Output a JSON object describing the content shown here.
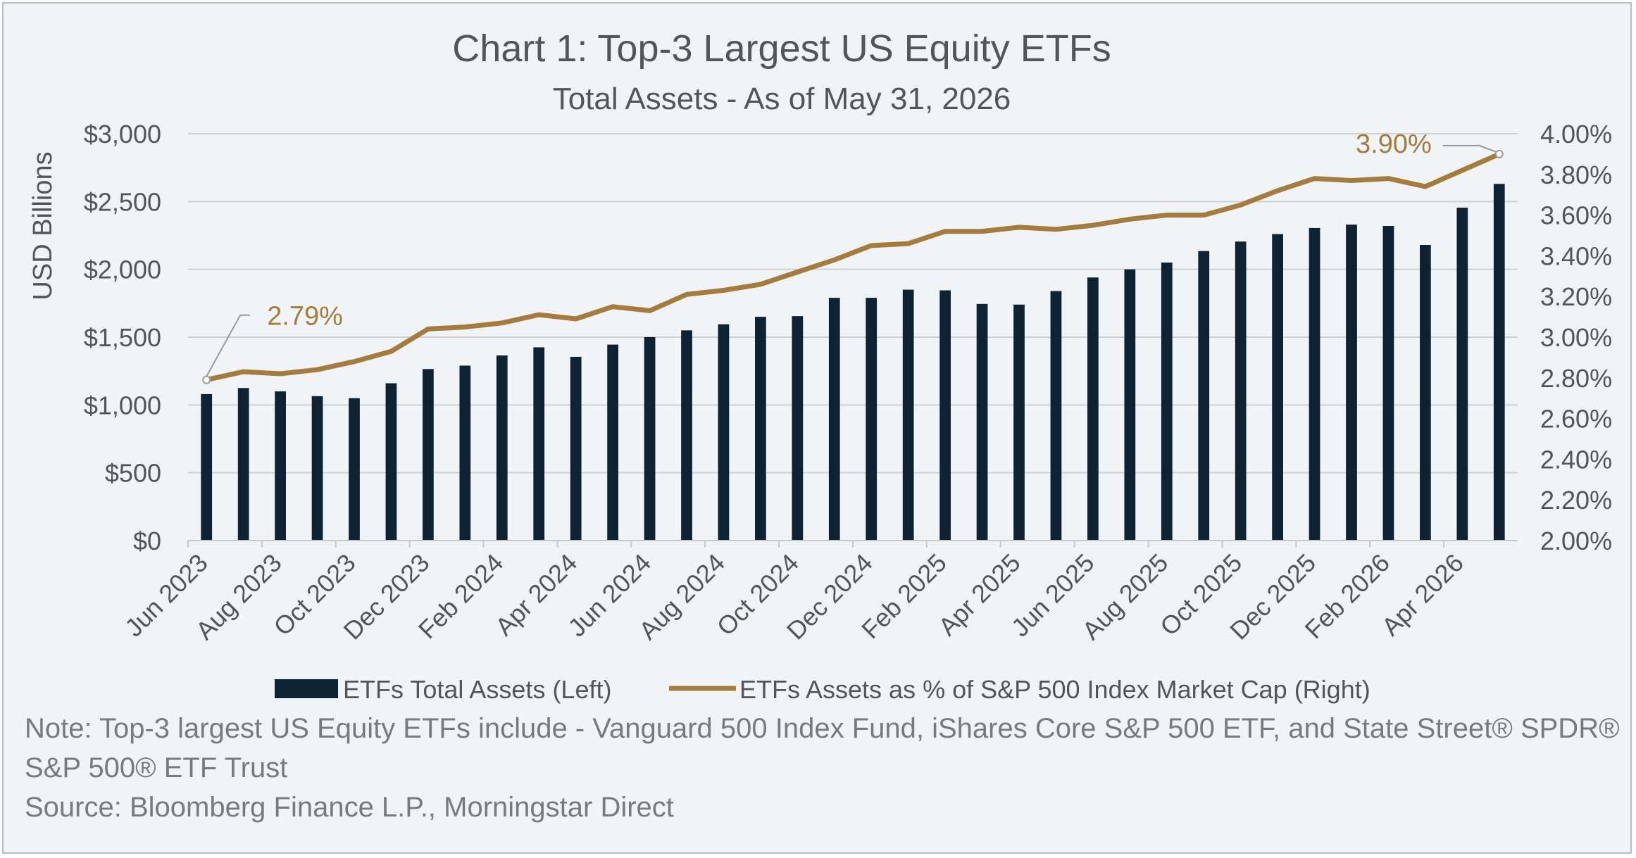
{
  "chart_data": {
    "type": "bar+line",
    "title": "Chart 1: Top-3 Largest US Equity ETFs",
    "subtitle": "Total Assets - As of May 31, 2026",
    "ylabel_left": "USD Billions",
    "ylim_left": [
      0,
      3000
    ],
    "yticks_left": [
      "$0",
      "$500",
      "$1,000",
      "$1,500",
      "$2,000",
      "$2,500",
      "$3,000"
    ],
    "ylim_right": [
      0.02,
      0.04
    ],
    "yticks_right": [
      "2.00%",
      "2.20%",
      "2.40%",
      "2.60%",
      "2.80%",
      "3.00%",
      "3.20%",
      "3.40%",
      "3.60%",
      "3.80%",
      "4.00%"
    ],
    "x": [
      "Jun 2023",
      "Jul 2023",
      "Aug 2023",
      "Sep 2023",
      "Oct 2023",
      "Nov 2023",
      "Dec 2023",
      "Jan 2024",
      "Feb 2024",
      "Mar 2024",
      "Apr 2024",
      "May 2024",
      "Jun 2024",
      "Jul 2024",
      "Aug 2024",
      "Sep 2024",
      "Oct 2024",
      "Nov 2024",
      "Dec 2024",
      "Jan 2025",
      "Feb 2025",
      "Mar 2025",
      "Apr 2025",
      "May 2025",
      "Jun 2025",
      "Jul 2025",
      "Aug 2025",
      "Sep 2025",
      "Oct 2025",
      "Nov 2025",
      "Dec 2025",
      "Jan 2026",
      "Feb 2026",
      "Mar 2026",
      "Apr 2026",
      "May 2026"
    ],
    "x_tick_labels": [
      "Jun 2023",
      "Aug 2023",
      "Oct 2023",
      "Dec 2023",
      "Feb 2024",
      "Apr 2024",
      "Jun 2024",
      "Aug 2024",
      "Oct 2024",
      "Dec 2024",
      "Feb 2025",
      "Apr 2025",
      "Jun 2025",
      "Aug 2025",
      "Oct 2025",
      "Dec 2025",
      "Feb 2026",
      "Apr 2026"
    ],
    "series": [
      {
        "name": "ETFs Total Assets (Left)",
        "type": "bar",
        "axis": "left",
        "color": "#0d2233",
        "values": [
          1080,
          1125,
          1100,
          1065,
          1050,
          1160,
          1265,
          1290,
          1365,
          1425,
          1355,
          1445,
          1500,
          1550,
          1595,
          1650,
          1655,
          1790,
          1790,
          1850,
          1845,
          1745,
          1740,
          1840,
          1940,
          2000,
          2050,
          2135,
          2205,
          2260,
          2305,
          2330,
          2320,
          2180,
          2455,
          2630
        ]
      },
      {
        "name": "ETFs Assets as % of S&P 500 Index Market Cap (Right)",
        "type": "line",
        "axis": "right",
        "color": "#a67c3d",
        "values": [
          0.0279,
          0.0283,
          0.0282,
          0.0284,
          0.0288,
          0.0293,
          0.0304,
          0.0305,
          0.0307,
          0.0311,
          0.0309,
          0.0315,
          0.0313,
          0.0321,
          0.0323,
          0.0326,
          0.0332,
          0.0338,
          0.0345,
          0.0346,
          0.0352,
          0.0352,
          0.0354,
          0.0353,
          0.0355,
          0.0358,
          0.036,
          0.036,
          0.0365,
          0.0372,
          0.0378,
          0.0377,
          0.0378,
          0.0374,
          0.0382,
          0.039
        ]
      }
    ],
    "annotations": [
      {
        "text": "2.79%",
        "series": 1,
        "index": 0
      },
      {
        "text": "3.90%",
        "series": 1,
        "index": 35
      }
    ],
    "legend_position": "bottom",
    "grid": "horizontal"
  },
  "notes": {
    "line1": "Note: Top-3 largest US Equity ETFs include - Vanguard 500 Index Fund, iShares Core S&P 500 ETF, and State Street® SPDR®",
    "line2": "S&P 500® ETF Trust",
    "source": "Source: Bloomberg Finance L.P., Morningstar Direct"
  },
  "colors": {
    "background": "#f0f4f7",
    "text": "#555555",
    "grid": "#d0d0d0",
    "bar": "#0d2233",
    "line": "#a67c3d"
  }
}
